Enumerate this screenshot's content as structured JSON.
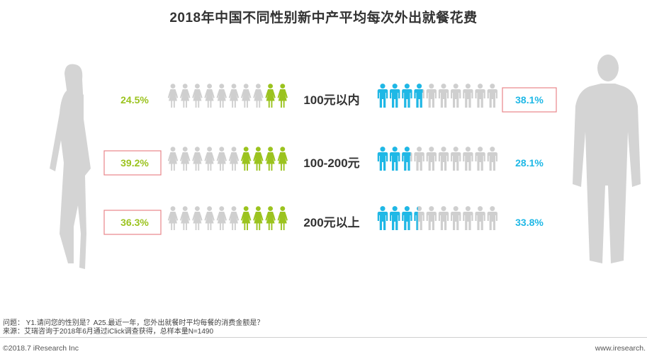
{
  "title": "2018年中国不同性别新中产平均每次外出就餐花费",
  "colors": {
    "female": "#9bc31f",
    "male": "#1fb8e6",
    "inactive": "#cfcfcf",
    "silhouette": "#d4d4d4",
    "highlight_border": "#e8868a"
  },
  "icon_names": {
    "female": "woman-icon",
    "male": "man-icon"
  },
  "chart_data": {
    "type": "pictograph",
    "icons_per_row": 10,
    "categories": [
      "100元以内",
      "100-200元",
      "200元以上"
    ],
    "series": [
      {
        "gender": "female",
        "values": [
          24.5,
          39.2,
          36.3
        ],
        "labels": [
          "24.5%",
          "39.2%",
          "36.3%"
        ],
        "highlighted": [
          false,
          true,
          true
        ]
      },
      {
        "gender": "male",
        "values": [
          38.1,
          28.1,
          33.8
        ],
        "labels": [
          "38.1%",
          "28.1%",
          "33.8%"
        ],
        "highlighted": [
          true,
          false,
          false
        ]
      }
    ]
  },
  "notes": {
    "question": "问题： Y1.请问您的性别是？A25.最近一年，您外出就餐时平均每餐的消费金额是？",
    "source": "来源：艾瑞咨询于2018年6月通过iClick调查获得，总样本量N=1490"
  },
  "footer": {
    "copyright": "©2018.7 iResearch Inc",
    "website": "www.iresearch."
  }
}
